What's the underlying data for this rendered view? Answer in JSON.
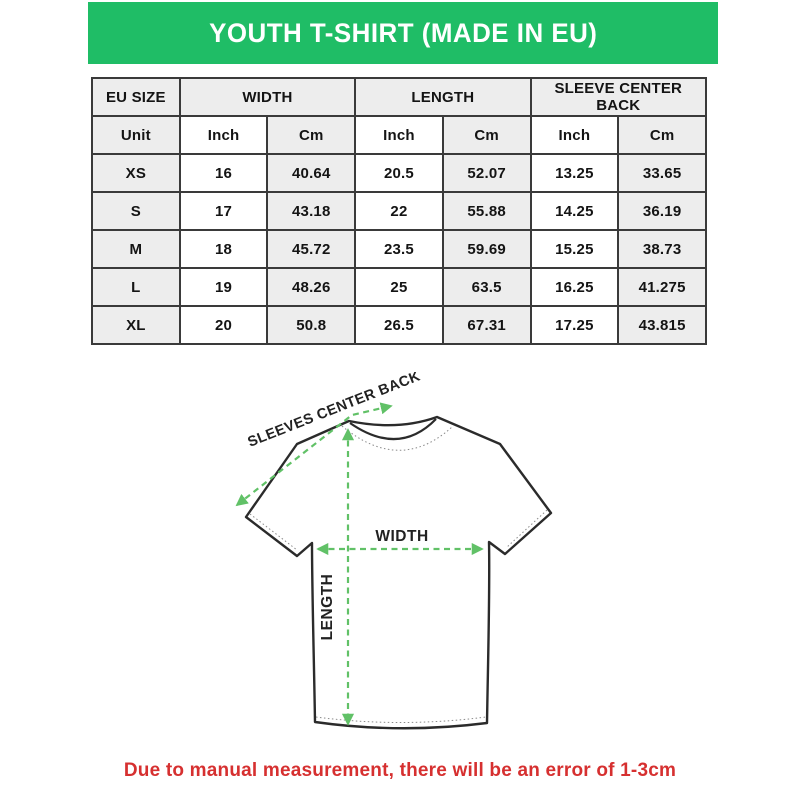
{
  "banner": {
    "title": "YOUTH T-SHIRT (MADE IN EU)",
    "bg_color": "#1fbd66",
    "text_color": "#ffffff"
  },
  "size_chart": {
    "group_headers": [
      "EU SIZE",
      "WIDTH",
      "LENGTH",
      "SLEEVE CENTER BACK"
    ],
    "unit_row": [
      "Unit",
      "Inch",
      "Cm",
      "Inch",
      "Cm",
      "Inch",
      "Cm"
    ],
    "rows": [
      {
        "size": "XS",
        "values": [
          "16",
          "40.64",
          "20.5",
          "52.07",
          "13.25",
          "33.65"
        ]
      },
      {
        "size": "S",
        "values": [
          "17",
          "43.18",
          "22",
          "55.88",
          "14.25",
          "36.19"
        ]
      },
      {
        "size": "M",
        "values": [
          "18",
          "45.72",
          "23.5",
          "59.69",
          "15.25",
          "38.73"
        ]
      },
      {
        "size": "L",
        "values": [
          "19",
          "48.26",
          "25",
          "63.5",
          "16.25",
          "41.275"
        ]
      },
      {
        "size": "XL",
        "values": [
          "20",
          "50.8",
          "26.5",
          "67.31",
          "17.25",
          "43.815"
        ]
      }
    ],
    "header_bg": "#ededed",
    "border_color": "#3a3a3a"
  },
  "diagram": {
    "labels": {
      "sleeve": "SLEEVES CENTER BACK",
      "width": "WIDTH",
      "length": "LENGTH"
    },
    "arrow_color": "#61c167",
    "outline_color": "#2b2b2b"
  },
  "footer": {
    "note": "Due to manual measurement, there will be an error of 1-3cm",
    "color": "#d63030"
  }
}
